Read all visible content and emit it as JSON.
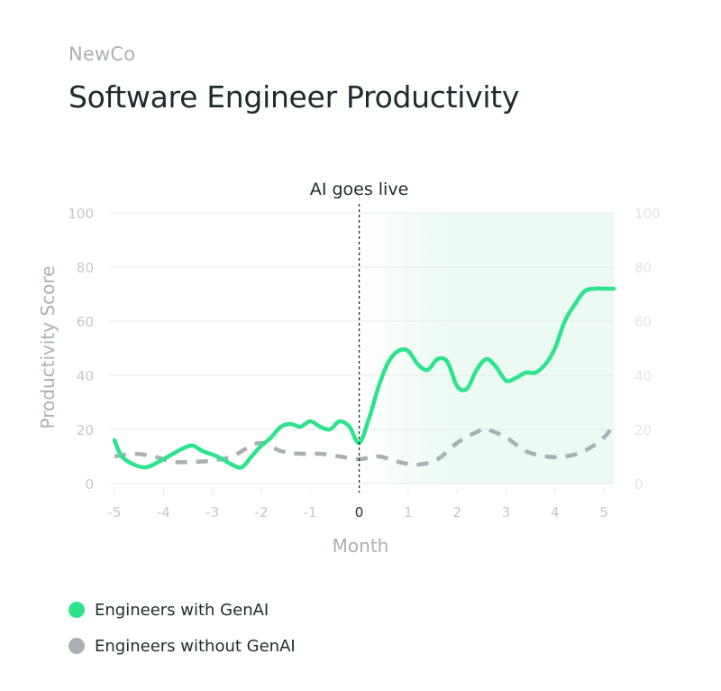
{
  "brand": "NewCo",
  "title": "Software Engineer Productivity",
  "colors": {
    "genai": "#2ee38c",
    "no_genai": "#a8b0b3",
    "shade": "#edfaf3",
    "axis_text": "#c2c9cc",
    "grid": "#e7eaeb",
    "text": "#1d2b2f"
  },
  "chart_data": {
    "type": "line",
    "xlabel": "Month",
    "ylabel": "Productivity Score",
    "xlim": [
      -5,
      5.2
    ],
    "ylim": [
      0,
      100
    ],
    "xticks": [
      -5,
      -4,
      -3,
      -2,
      -1,
      0,
      1,
      2,
      3,
      4,
      5
    ],
    "yticks": [
      0,
      20,
      40,
      60,
      80,
      100
    ],
    "secondary_yticks": [
      0,
      20,
      40,
      60,
      80,
      100
    ],
    "grid": true,
    "annotation": {
      "x": 0,
      "label": "AI goes live"
    },
    "shaded_region": [
      0,
      5.2
    ],
    "legend_position": "bottom-left",
    "series": [
      {
        "name": "Engineers with GenAI",
        "color": "#2ee38c",
        "style": "solid",
        "x": [
          -5,
          -4.85,
          -4.6,
          -4.35,
          -4.1,
          -3.85,
          -3.6,
          -3.4,
          -3.2,
          -2.9,
          -2.6,
          -2.4,
          -2.2,
          -2.0,
          -1.8,
          -1.6,
          -1.4,
          -1.2,
          -1.0,
          -0.8,
          -0.6,
          -0.4,
          -0.2,
          0.0,
          0.2,
          0.4,
          0.6,
          0.8,
          1.0,
          1.2,
          1.4,
          1.6,
          1.8,
          2.0,
          2.2,
          2.4,
          2.6,
          2.8,
          3.0,
          3.2,
          3.4,
          3.6,
          3.8,
          4.0,
          4.2,
          4.4,
          4.6,
          4.8,
          5.0,
          5.2
        ],
        "y": [
          16,
          10,
          7,
          6,
          8,
          10.5,
          13,
          14,
          12,
          10,
          7,
          6,
          10,
          14,
          17,
          21,
          22,
          21,
          23,
          21,
          20,
          23,
          21,
          15,
          24,
          36,
          45,
          49,
          49,
          44,
          42,
          46,
          45,
          36,
          35,
          42,
          46,
          43,
          38,
          39,
          41,
          41,
          44,
          50,
          60,
          66,
          71,
          72,
          72,
          72
        ]
      },
      {
        "name": "Engineers without GenAI",
        "color": "#a8b0b3",
        "style": "dashed",
        "x": [
          -5,
          -4.6,
          -4.2,
          -3.8,
          -3.4,
          -3.0,
          -2.6,
          -2.3,
          -2.0,
          -1.6,
          -1.2,
          -0.8,
          -0.4,
          0.0,
          0.4,
          0.8,
          1.2,
          1.6,
          2.0,
          2.4,
          2.6,
          3.0,
          3.4,
          3.8,
          4.2,
          4.6,
          5.0,
          5.2
        ],
        "y": [
          10,
          11,
          10,
          8,
          8,
          8.5,
          10,
          13,
          15,
          12,
          11,
          11,
          10,
          9,
          10,
          8,
          7,
          9,
          15,
          19,
          20,
          17,
          12,
          10,
          10,
          12,
          17,
          22
        ]
      }
    ]
  }
}
